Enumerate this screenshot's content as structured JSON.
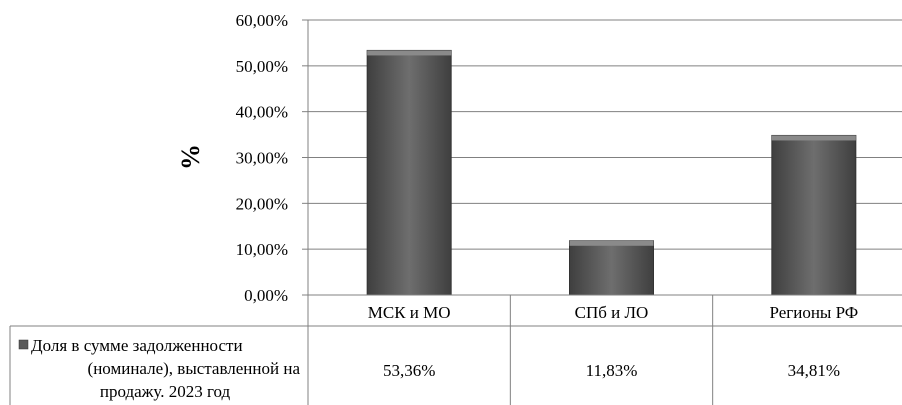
{
  "chart_data": {
    "type": "bar",
    "ylabel": "%",
    "ylim": [
      0,
      60
    ],
    "yticks": [
      "0,00%",
      "10,00%",
      "20,00%",
      "30,00%",
      "40,00%",
      "50,00%",
      "60,00%"
    ],
    "categories": [
      "МСК и МО",
      "СПб и ЛО",
      "Регионы РФ"
    ],
    "series": [
      {
        "name_lines": [
          "Доля в сумме задолженности",
          "(номинале), выставленной на",
          "продажу. 2023 год"
        ],
        "values": [
          53.36,
          11.83,
          34.81
        ],
        "labels": [
          "53,36%",
          "11,83%",
          "34,81%"
        ]
      }
    ],
    "grid": true,
    "legend": "data-table-left",
    "colors": {
      "bar": "#595959",
      "axis": "#808080",
      "grid": "#808080"
    }
  }
}
